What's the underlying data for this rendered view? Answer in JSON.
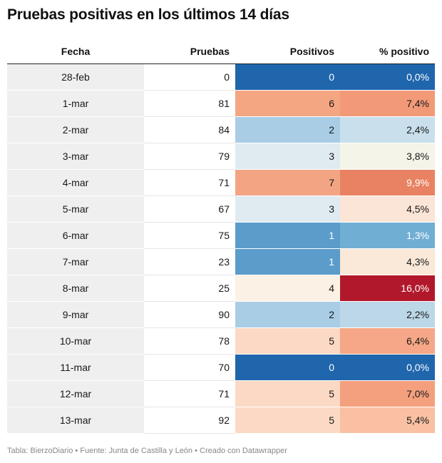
{
  "title": "Pruebas positivas en los últimos 14 días",
  "footer": "Tabla: BierzoDiario • Fuente: Junta de Castilla y León • Creado con Datawrapper",
  "chart_data": {
    "type": "table",
    "columns": [
      "Fecha",
      "Pruebas",
      "Positivos",
      "% positivo"
    ],
    "rows": [
      {
        "fecha": "28-feb",
        "pruebas": "0",
        "positivos": "0",
        "pct": "0,0%",
        "pos_color": "#2066ac",
        "pct_color": "#2066ac",
        "pos_text": "#ffffff",
        "pct_text": "#ffffff"
      },
      {
        "fecha": "1-mar",
        "pruebas": "81",
        "positivos": "6",
        "pct": "7,4%",
        "pos_color": "#f4a582",
        "pct_color": "#f29a78",
        "pos_text": "#181818",
        "pct_text": "#181818"
      },
      {
        "fecha": "2-mar",
        "pruebas": "84",
        "positivos": "2",
        "pct": "2,4%",
        "pos_color": "#a9cde4",
        "pct_color": "#c9e0ec",
        "pos_text": "#181818",
        "pct_text": "#181818"
      },
      {
        "fecha": "3-mar",
        "pruebas": "79",
        "positivos": "3",
        "pct": "3,8%",
        "pos_color": "#e0ebf1",
        "pct_color": "#f4f4e8",
        "pos_text": "#181818",
        "pct_text": "#181818"
      },
      {
        "fecha": "4-mar",
        "pruebas": "71",
        "positivos": "7",
        "pct": "9,9%",
        "pos_color": "#f3a483",
        "pct_color": "#e88262",
        "pos_text": "#181818",
        "pct_text": "#ffffff"
      },
      {
        "fecha": "5-mar",
        "pruebas": "67",
        "positivos": "3",
        "pct": "4,5%",
        "pos_color": "#e0ebf1",
        "pct_color": "#fbe5d6",
        "pos_text": "#181818",
        "pct_text": "#181818"
      },
      {
        "fecha": "6-mar",
        "pruebas": "75",
        "positivos": "1",
        "pct": "1,3%",
        "pos_color": "#5b9ccb",
        "pct_color": "#70aed4",
        "pos_text": "#ffffff",
        "pct_text": "#ffffff"
      },
      {
        "fecha": "7-mar",
        "pruebas": "23",
        "positivos": "1",
        "pct": "4,3%",
        "pos_color": "#5b9ccb",
        "pct_color": "#fae8d8",
        "pos_text": "#ffffff",
        "pct_text": "#181818"
      },
      {
        "fecha": "8-mar",
        "pruebas": "25",
        "positivos": "4",
        "pct": "16,0%",
        "pos_color": "#fbf1e4",
        "pct_color": "#b2182b",
        "pos_text": "#181818",
        "pct_text": "#ffffff"
      },
      {
        "fecha": "9-mar",
        "pruebas": "90",
        "positivos": "2",
        "pct": "2,2%",
        "pos_color": "#a9cde4",
        "pct_color": "#bbd7e8",
        "pos_text": "#181818",
        "pct_text": "#181818"
      },
      {
        "fecha": "10-mar",
        "pruebas": "78",
        "positivos": "5",
        "pct": "6,4%",
        "pos_color": "#fcd9c4",
        "pct_color": "#f5a787",
        "pos_text": "#181818",
        "pct_text": "#181818"
      },
      {
        "fecha": "11-mar",
        "pruebas": "70",
        "positivos": "0",
        "pct": "0,0%",
        "pos_color": "#2066ac",
        "pct_color": "#2066ac",
        "pos_text": "#ffffff",
        "pct_text": "#ffffff"
      },
      {
        "fecha": "12-mar",
        "pruebas": "71",
        "positivos": "5",
        "pct": "7,0%",
        "pos_color": "#fcd9c4",
        "pct_color": "#f4a07e",
        "pos_text": "#181818",
        "pct_text": "#181818"
      },
      {
        "fecha": "13-mar",
        "pruebas": "92",
        "positivos": "5",
        "pct": "5,4%",
        "pos_color": "#fcd9c4",
        "pct_color": "#f9c0a3",
        "pos_text": "#181818",
        "pct_text": "#181818"
      }
    ]
  }
}
